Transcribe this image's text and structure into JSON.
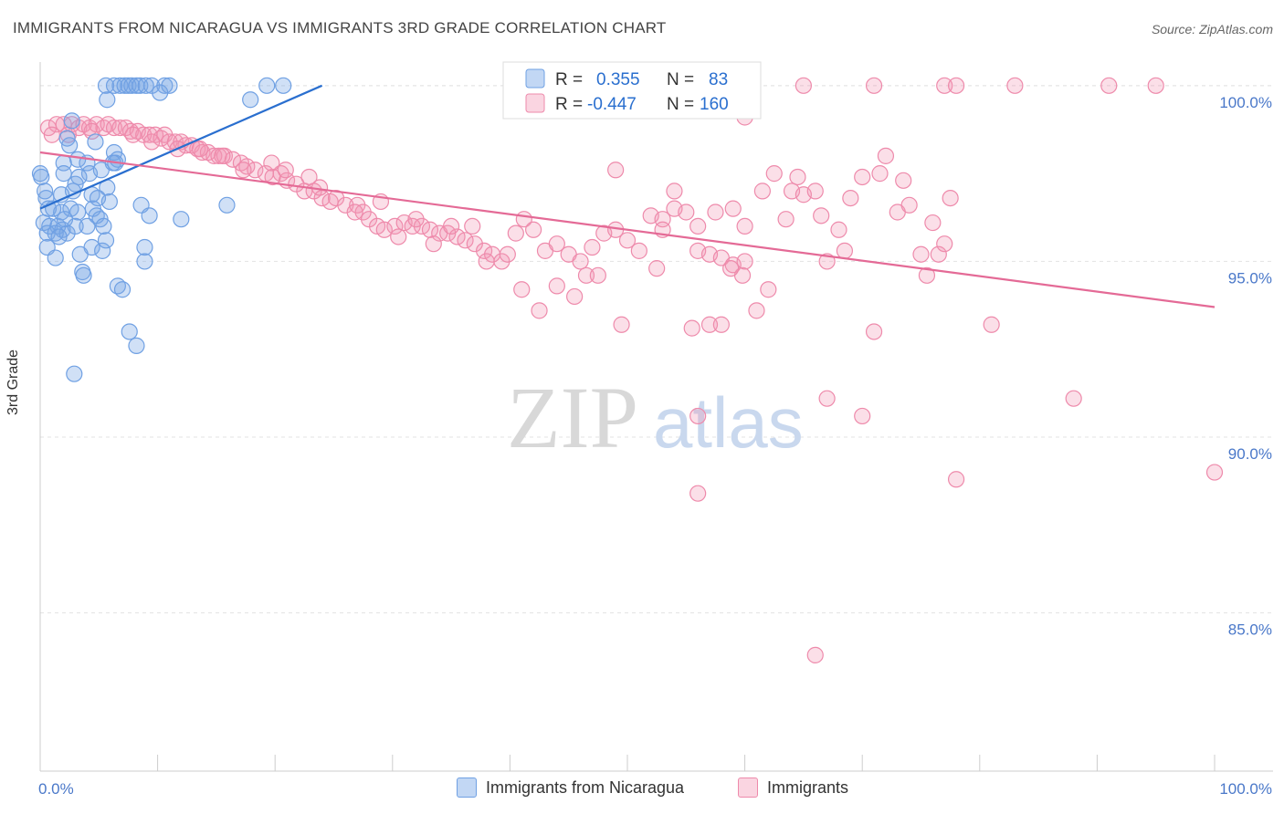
{
  "title": "IMMIGRANTS FROM NICARAGUA VS IMMIGRANTS 3RD GRADE CORRELATION CHART",
  "source": "Source: ZipAtlas.com",
  "watermark": {
    "zip": "ZIP",
    "atlas": "atlas"
  },
  "colors": {
    "blue": "#6fa0e3",
    "blue_fill": "rgba(120,166,230,0.35)",
    "blue_line": "#2a6fcf",
    "pink": "#ee8aab",
    "pink_fill": "rgba(242,150,180,0.30)",
    "pink_line": "#e46a96",
    "tick_label": "#4a78c9",
    "grid": "#e3e3e3"
  },
  "legend": {
    "rows": [
      {
        "r_label": "R =",
        "r_value": "0.355",
        "n_label": "N =",
        "n_value": "83"
      },
      {
        "r_label": "R =",
        "r_value": "-0.447",
        "n_label": "N =",
        "n_value": "160"
      }
    ]
  },
  "bottom_legend": [
    "Immigrants from Nicaragua",
    "Immigrants"
  ],
  "chart_data": {
    "type": "scatter",
    "ylabel": "3rd Grade",
    "xlim": [
      0,
      100
    ],
    "ylim": [
      80.5,
      100.8
    ],
    "x_tick_labels": [
      "0.0%",
      "100.0%"
    ],
    "y_ticks": [
      85.0,
      90.0,
      95.0,
      100.0
    ],
    "y_tick_labels": [
      "85.0%",
      "90.0%",
      "95.0%",
      "100.0%"
    ],
    "grid": true,
    "series": [
      {
        "name": "Immigrants from Nicaragua",
        "trend": [
          [
            0,
            96.5
          ],
          [
            24,
            100.0
          ]
        ],
        "points": [
          [
            5.6,
            100
          ],
          [
            6.3,
            100
          ],
          [
            6.8,
            100
          ],
          [
            7.2,
            100
          ],
          [
            7.5,
            100
          ],
          [
            7.8,
            100
          ],
          [
            8.2,
            100
          ],
          [
            8.5,
            100
          ],
          [
            9.0,
            100
          ],
          [
            9.5,
            100
          ],
          [
            10.6,
            100
          ],
          [
            11.0,
            100
          ],
          [
            19.3,
            100
          ],
          [
            20.7,
            100
          ],
          [
            5.7,
            99.6
          ],
          [
            10.2,
            99.8
          ],
          [
            17.9,
            99.6
          ],
          [
            2.3,
            98.5
          ],
          [
            4.7,
            98.4
          ],
          [
            2.5,
            98.3
          ],
          [
            6.3,
            98.1
          ],
          [
            3.2,
            97.9
          ],
          [
            2.0,
            97.8
          ],
          [
            4.0,
            97.8
          ],
          [
            6.6,
            97.9
          ],
          [
            6.4,
            97.8
          ],
          [
            4.2,
            97.5
          ],
          [
            5.2,
            97.6
          ],
          [
            0.1,
            97.4
          ],
          [
            2.0,
            97.5
          ],
          [
            3.3,
            97.4
          ],
          [
            3.0,
            97.2
          ],
          [
            5.7,
            97.1
          ],
          [
            2.8,
            97.0
          ],
          [
            1.8,
            96.9
          ],
          [
            4.4,
            96.9
          ],
          [
            0.5,
            96.8
          ],
          [
            4.9,
            96.8
          ],
          [
            5.9,
            96.7
          ],
          [
            8.6,
            96.6
          ],
          [
            15.9,
            96.6
          ],
          [
            0.7,
            96.5
          ],
          [
            1.8,
            96.4
          ],
          [
            2.6,
            96.5
          ],
          [
            3.2,
            96.4
          ],
          [
            4.5,
            96.5
          ],
          [
            4.8,
            96.3
          ],
          [
            5.1,
            96.2
          ],
          [
            9.3,
            96.3
          ],
          [
            12.0,
            96.2
          ],
          [
            0.3,
            96.1
          ],
          [
            0.8,
            96.0
          ],
          [
            1.5,
            96.0
          ],
          [
            1.9,
            95.9
          ],
          [
            5.4,
            96.0
          ],
          [
            0.6,
            95.8
          ],
          [
            1.3,
            95.8
          ],
          [
            2.3,
            95.8
          ],
          [
            1.6,
            95.7
          ],
          [
            4.4,
            95.4
          ],
          [
            8.9,
            95.4
          ],
          [
            0.6,
            95.4
          ],
          [
            3.4,
            95.2
          ],
          [
            5.3,
            95.3
          ],
          [
            1.3,
            95.1
          ],
          [
            8.9,
            95.0
          ],
          [
            3.6,
            94.7
          ],
          [
            3.7,
            94.6
          ],
          [
            6.6,
            94.3
          ],
          [
            7.0,
            94.2
          ],
          [
            7.6,
            93.0
          ],
          [
            8.2,
            92.6
          ],
          [
            2.9,
            91.8
          ],
          [
            0.0,
            97.5
          ],
          [
            0.4,
            97.0
          ],
          [
            1.1,
            96.5
          ],
          [
            3.0,
            96.0
          ],
          [
            5.6,
            95.6
          ],
          [
            2.1,
            96.2
          ],
          [
            4.0,
            96.0
          ],
          [
            6.2,
            97.8
          ],
          [
            2.7,
            99.0
          ]
        ]
      },
      {
        "name": "Immigrants",
        "trend": [
          [
            0,
            98.1
          ],
          [
            100,
            93.7
          ]
        ],
        "points": [
          [
            0.7,
            98.8
          ],
          [
            1.4,
            98.9
          ],
          [
            2.0,
            98.9
          ],
          [
            2.7,
            98.9
          ],
          [
            3.3,
            98.8
          ],
          [
            3.7,
            98.9
          ],
          [
            4.2,
            98.8
          ],
          [
            4.8,
            98.9
          ],
          [
            5.4,
            98.8
          ],
          [
            5.8,
            98.9
          ],
          [
            6.3,
            98.8
          ],
          [
            6.8,
            98.8
          ],
          [
            7.3,
            98.8
          ],
          [
            7.7,
            98.7
          ],
          [
            8.3,
            98.7
          ],
          [
            8.8,
            98.6
          ],
          [
            9.3,
            98.6
          ],
          [
            9.8,
            98.6
          ],
          [
            10.3,
            98.5
          ],
          [
            10.6,
            98.6
          ],
          [
            11.0,
            98.4
          ],
          [
            11.5,
            98.4
          ],
          [
            12.0,
            98.4
          ],
          [
            12.4,
            98.3
          ],
          [
            12.9,
            98.3
          ],
          [
            13.4,
            98.2
          ],
          [
            13.8,
            98.1
          ],
          [
            14.3,
            98.1
          ],
          [
            14.8,
            98.0
          ],
          [
            15.2,
            98.0
          ],
          [
            15.7,
            98.0
          ],
          [
            16.4,
            97.9
          ],
          [
            17.1,
            97.8
          ],
          [
            17.6,
            97.7
          ],
          [
            18.3,
            97.6
          ],
          [
            19.2,
            97.5
          ],
          [
            19.8,
            97.4
          ],
          [
            20.5,
            97.5
          ],
          [
            21.0,
            97.3
          ],
          [
            21.8,
            97.2
          ],
          [
            22.5,
            97.0
          ],
          [
            23.3,
            97.0
          ],
          [
            24.0,
            96.8
          ],
          [
            24.7,
            96.7
          ],
          [
            2.4,
            98.6
          ],
          [
            4.4,
            98.7
          ],
          [
            7.9,
            98.6
          ],
          [
            9.5,
            98.4
          ],
          [
            11.7,
            98.2
          ],
          [
            13.6,
            98.2
          ],
          [
            15.5,
            98.0
          ],
          [
            17.3,
            97.6
          ],
          [
            19.7,
            97.8
          ],
          [
            20.9,
            97.6
          ],
          [
            22.9,
            97.4
          ],
          [
            23.8,
            97.1
          ],
          [
            25.2,
            96.8
          ],
          [
            26.0,
            96.6
          ],
          [
            27.0,
            96.6
          ],
          [
            27.5,
            96.4
          ],
          [
            28.0,
            96.2
          ],
          [
            28.7,
            96.0
          ],
          [
            29.3,
            95.9
          ],
          [
            30.2,
            96.0
          ],
          [
            31.0,
            96.1
          ],
          [
            31.7,
            96.0
          ],
          [
            32.5,
            96.0
          ],
          [
            33.2,
            95.9
          ],
          [
            34.0,
            95.8
          ],
          [
            34.7,
            95.8
          ],
          [
            35.5,
            95.7
          ],
          [
            36.2,
            95.6
          ],
          [
            37.0,
            95.5
          ],
          [
            37.8,
            95.3
          ],
          [
            38.5,
            95.2
          ],
          [
            39.3,
            95.0
          ],
          [
            1.0,
            98.6
          ],
          [
            26.8,
            96.4
          ],
          [
            29.0,
            96.7
          ],
          [
            30.5,
            95.7
          ],
          [
            32.0,
            96.2
          ],
          [
            33.5,
            95.5
          ],
          [
            35.0,
            96.0
          ],
          [
            36.8,
            96.0
          ],
          [
            38.0,
            95.0
          ],
          [
            39.8,
            95.2
          ],
          [
            40.5,
            95.8
          ],
          [
            41.2,
            96.2
          ],
          [
            42.0,
            95.9
          ],
          [
            43.0,
            95.3
          ],
          [
            44.0,
            95.5
          ],
          [
            45.0,
            95.2
          ],
          [
            46.0,
            95.0
          ],
          [
            47.0,
            95.4
          ],
          [
            48.0,
            95.8
          ],
          [
            49.0,
            95.9
          ],
          [
            50.0,
            95.6
          ],
          [
            51.0,
            95.3
          ],
          [
            52.0,
            96.3
          ],
          [
            53.0,
            96.2
          ],
          [
            54.0,
            96.5
          ],
          [
            55.0,
            96.4
          ],
          [
            56.0,
            95.3
          ],
          [
            57.0,
            95.2
          ],
          [
            58.0,
            95.1
          ],
          [
            59.0,
            94.9
          ],
          [
            60.0,
            95.0
          ],
          [
            41.0,
            94.2
          ],
          [
            42.5,
            93.6
          ],
          [
            44.0,
            94.3
          ],
          [
            45.5,
            94.0
          ],
          [
            46.5,
            94.6
          ],
          [
            47.5,
            94.6
          ],
          [
            49.5,
            93.2
          ],
          [
            52.5,
            94.8
          ],
          [
            55.5,
            93.1
          ],
          [
            57.0,
            93.2
          ],
          [
            58.0,
            93.2
          ],
          [
            61.0,
            93.6
          ],
          [
            62.0,
            94.2
          ],
          [
            59.8,
            94.6
          ],
          [
            58.8,
            94.8
          ],
          [
            49.0,
            97.6
          ],
          [
            53.0,
            95.9
          ],
          [
            57.5,
            96.4
          ],
          [
            60.0,
            96.0
          ],
          [
            62.5,
            97.5
          ],
          [
            64.0,
            97.0
          ],
          [
            65.0,
            96.9
          ],
          [
            66.0,
            97.0
          ],
          [
            64.5,
            97.4
          ],
          [
            68.0,
            95.9
          ],
          [
            69.0,
            96.8
          ],
          [
            70.0,
            97.4
          ],
          [
            71.5,
            97.5
          ],
          [
            72.0,
            98.0
          ],
          [
            73.0,
            96.4
          ],
          [
            73.5,
            97.3
          ],
          [
            74.0,
            96.6
          ],
          [
            75.0,
            95.2
          ],
          [
            75.5,
            94.6
          ],
          [
            76.0,
            96.1
          ],
          [
            76.5,
            95.2
          ],
          [
            77.0,
            95.5
          ],
          [
            77.5,
            96.8
          ],
          [
            66.5,
            96.3
          ],
          [
            67.0,
            95.0
          ],
          [
            68.5,
            95.3
          ],
          [
            63.5,
            96.2
          ],
          [
            61.5,
            97.0
          ],
          [
            59.0,
            96.5
          ],
          [
            56.0,
            96.0
          ],
          [
            54.0,
            97.0
          ],
          [
            65.0,
            100.0
          ],
          [
            71.0,
            100.0
          ],
          [
            77.0,
            100.0
          ],
          [
            78.0,
            100.0
          ],
          [
            83.0,
            100.0
          ],
          [
            91.0,
            100.0
          ],
          [
            95.0,
            100.0
          ],
          [
            60.0,
            99.1
          ],
          [
            71.0,
            93.0
          ],
          [
            81.0,
            93.2
          ],
          [
            67.0,
            91.1
          ],
          [
            56.0,
            90.6
          ],
          [
            70.0,
            90.6
          ],
          [
            88.0,
            91.1
          ],
          [
            78.0,
            88.8
          ],
          [
            56.0,
            88.4
          ],
          [
            100.0,
            89.0
          ],
          [
            66.0,
            83.8
          ]
        ]
      }
    ]
  }
}
